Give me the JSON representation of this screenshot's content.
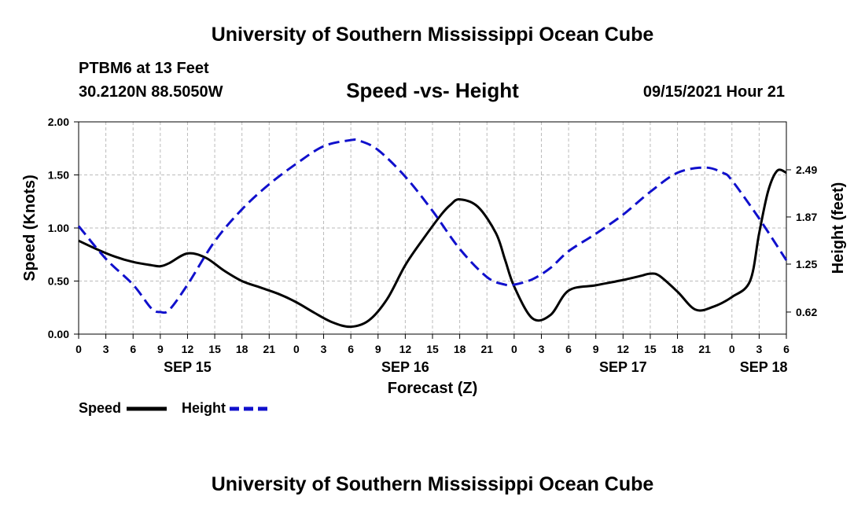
{
  "header": {
    "title_top": "University of Southern Mississippi Ocean Cube",
    "title_bottom": "University of Southern Mississippi Ocean Cube",
    "station": "PTBM6 at 13 Feet",
    "coords": "30.2120N  88.5050W",
    "datetime": "09/15/2021 Hour 21"
  },
  "chart_data": {
    "type": "line",
    "title": "Speed -vs- Height",
    "xlabel": "Forecast (Z)",
    "ylabel": "Speed (Knots)",
    "y2label": "Height (feet)",
    "xlim": [
      0,
      78
    ],
    "ylim": [
      0,
      2.0
    ],
    "y2lim": [
      0.33,
      3.12
    ],
    "x_ticks": [
      0,
      3,
      6,
      9,
      12,
      15,
      18,
      21,
      24,
      27,
      30,
      33,
      36,
      39,
      42,
      45,
      48,
      51,
      54,
      57,
      60,
      63,
      66,
      69,
      72,
      75,
      78
    ],
    "x_tick_labels": [
      "0",
      "3",
      "6",
      "9",
      "12",
      "15",
      "18",
      "21",
      "0",
      "3",
      "6",
      "9",
      "12",
      "15",
      "18",
      "21",
      "0",
      "3",
      "6",
      "9",
      "12",
      "15",
      "18",
      "21",
      "0",
      "3",
      "6"
    ],
    "date_labels": [
      {
        "x": 12,
        "text": "SEP 15"
      },
      {
        "x": 36,
        "text": "SEP 16"
      },
      {
        "x": 60,
        "text": "SEP 17"
      },
      {
        "x": 75.5,
        "text": "SEP 18"
      }
    ],
    "y_ticks": [
      0,
      0.5,
      1.0,
      1.5,
      2.0
    ],
    "y_tick_labels": [
      "0.00",
      "0.50",
      "1.00",
      "1.50",
      "2.00"
    ],
    "y2_ticks": [
      0.62,
      1.25,
      1.87,
      2.49
    ],
    "y2_tick_labels": [
      "0.62",
      "1.25",
      "1.87",
      "2.49"
    ],
    "grid": true,
    "legend": [
      {
        "name": "Speed",
        "color": "#000000",
        "dash": "solid"
      },
      {
        "name": "Height",
        "color": "#1010cc",
        "dash": "dashed"
      }
    ],
    "series": [
      {
        "name": "Speed",
        "axis": "left",
        "color": "#000000",
        "x": [
          0,
          2,
          4,
          6,
          8,
          9,
          10,
          12,
          14,
          16,
          18,
          20,
          22,
          24,
          26,
          28,
          30,
          32,
          34,
          36,
          38,
          40,
          41,
          42,
          44,
          46,
          47,
          48,
          50,
          52,
          54,
          57,
          60,
          62,
          63,
          64,
          66,
          68,
          70,
          72,
          74,
          75,
          76,
          77,
          78
        ],
        "y": [
          0.88,
          0.8,
          0.73,
          0.68,
          0.65,
          0.64,
          0.67,
          0.76,
          0.72,
          0.6,
          0.5,
          0.44,
          0.38,
          0.3,
          0.2,
          0.11,
          0.07,
          0.13,
          0.33,
          0.65,
          0.9,
          1.13,
          1.22,
          1.27,
          1.2,
          0.95,
          0.7,
          0.45,
          0.15,
          0.18,
          0.41,
          0.46,
          0.51,
          0.55,
          0.57,
          0.55,
          0.4,
          0.23,
          0.26,
          0.35,
          0.5,
          0.95,
          1.35,
          1.54,
          1.52
        ]
      },
      {
        "name": "Height",
        "axis": "right",
        "color": "#1010cc",
        "x": [
          0,
          3,
          6,
          8,
          9,
          10,
          12,
          15,
          18,
          21,
          24,
          27,
          30,
          31,
          33,
          36,
          39,
          42,
          45,
          47,
          48,
          50,
          52,
          54,
          57,
          60,
          63,
          66,
          69,
          71,
          72,
          75,
          78
        ],
        "y": [
          1.75,
          1.32,
          0.98,
          0.67,
          0.62,
          0.65,
          0.98,
          1.55,
          1.97,
          2.3,
          2.57,
          2.8,
          2.88,
          2.87,
          2.75,
          2.4,
          1.95,
          1.45,
          1.08,
          0.98,
          0.98,
          1.05,
          1.2,
          1.42,
          1.65,
          1.9,
          2.2,
          2.45,
          2.52,
          2.45,
          2.35,
          1.85,
          1.3
        ]
      }
    ]
  }
}
